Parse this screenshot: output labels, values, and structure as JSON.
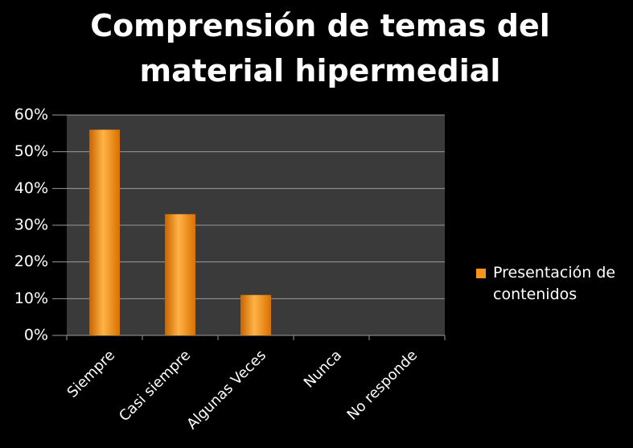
{
  "chart_data": {
    "type": "bar",
    "title": "Comprensión de temas del material hipermedial",
    "categories": [
      "Siempre",
      "Casi siempre",
      "Algunas Veces",
      "Nunca",
      "No responde"
    ],
    "series": [
      {
        "name": "Presentación de contenidos",
        "color": "#f7941d",
        "values": [
          56,
          33,
          11,
          0,
          0
        ]
      }
    ],
    "ylim": [
      0,
      60
    ],
    "yticks": [
      {
        "value": 0,
        "label": "0%"
      },
      {
        "value": 10,
        "label": "10%"
      },
      {
        "value": 20,
        "label": "20%"
      },
      {
        "value": 30,
        "label": "30%"
      },
      {
        "value": 40,
        "label": "40%"
      },
      {
        "value": 50,
        "label": "50%"
      },
      {
        "value": 60,
        "label": "60%"
      }
    ],
    "grid": true,
    "legend": "right"
  }
}
